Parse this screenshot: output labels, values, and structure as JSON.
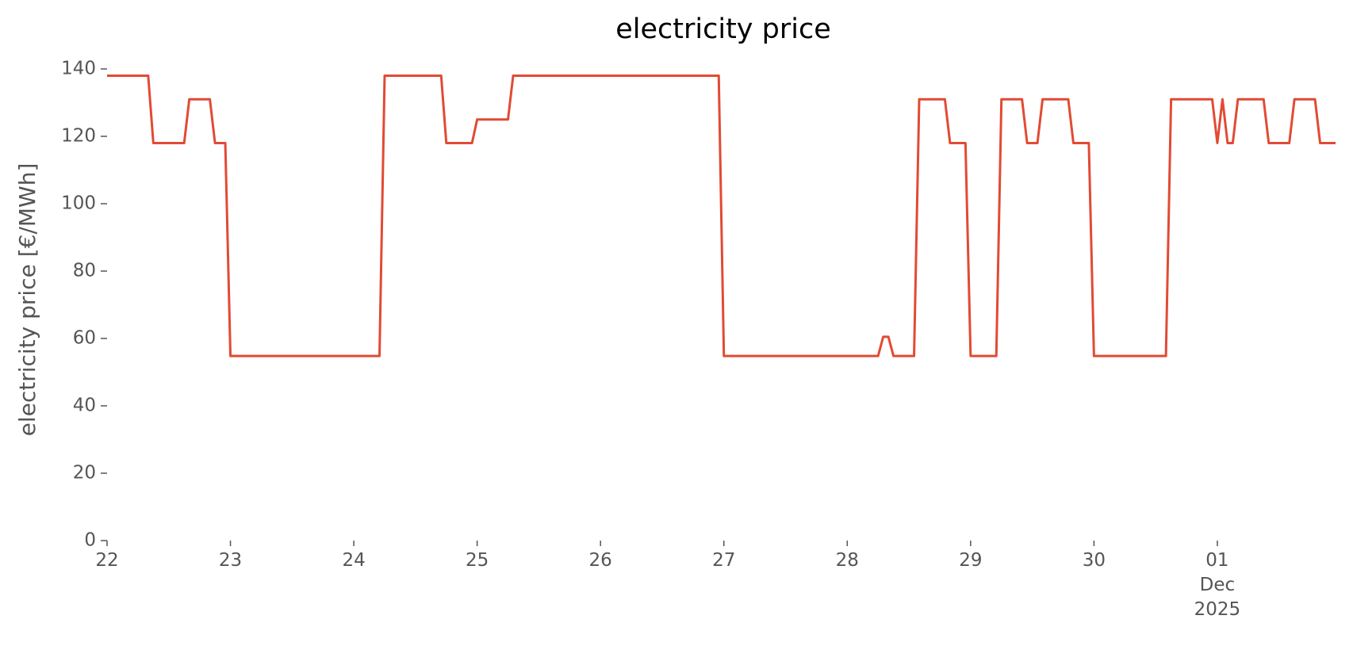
{
  "chart_data": {
    "type": "line",
    "title": "electricity price",
    "ylabel": "electricity price [€/MWh]",
    "x": [
      "2025-11-22T00:00",
      "2025-11-22T08:00",
      "2025-11-22T09:00",
      "2025-11-22T15:00",
      "2025-11-22T16:00",
      "2025-11-22T20:00",
      "2025-11-22T21:00",
      "2025-11-22T23:00",
      "2025-11-23T00:00",
      "2025-11-24T05:00",
      "2025-11-24T06:00",
      "2025-11-24T17:00",
      "2025-11-24T18:00",
      "2025-11-24T23:00",
      "2025-11-25T00:00",
      "2025-11-25T06:00",
      "2025-11-25T07:00",
      "2025-11-26T23:00",
      "2025-11-27T00:00",
      "2025-11-28T06:00",
      "2025-11-28T07:00",
      "2025-11-28T08:00",
      "2025-11-28T09:00",
      "2025-11-28T13:00",
      "2025-11-28T14:00",
      "2025-11-28T19:00",
      "2025-11-28T20:00",
      "2025-11-28T23:00",
      "2025-11-29T00:00",
      "2025-11-29T05:00",
      "2025-11-29T06:00",
      "2025-11-29T10:00",
      "2025-11-29T11:00",
      "2025-11-29T13:00",
      "2025-11-29T14:00",
      "2025-11-29T19:00",
      "2025-11-29T20:00",
      "2025-11-29T23:00",
      "2025-11-30T00:00",
      "2025-11-30T14:00",
      "2025-11-30T15:00",
      "2025-11-30T23:00",
      "2025-12-01T00:00",
      "2025-12-01T01:00",
      "2025-12-01T02:00",
      "2025-12-01T03:00",
      "2025-12-01T04:00",
      "2025-12-01T09:00",
      "2025-12-01T10:00",
      "2025-12-01T14:00",
      "2025-12-01T15:00",
      "2025-12-01T19:00",
      "2025-12-01T20:00",
      "2025-12-01T23:00"
    ],
    "series": [
      {
        "name": "electricity price",
        "color": "#e24a33",
        "values": [
          138,
          138,
          118,
          118,
          131,
          131,
          118,
          118,
          54.8,
          54.8,
          138,
          138,
          118,
          118,
          125,
          125,
          138,
          138,
          54.8,
          54.8,
          60.5,
          60.5,
          54.8,
          54.8,
          131,
          131,
          118,
          118,
          54.8,
          54.8,
          131,
          131,
          118,
          118,
          131,
          131,
          118,
          118,
          54.8,
          54.8,
          131,
          131,
          118,
          131,
          118,
          118,
          131,
          131,
          118,
          118,
          131,
          131,
          118,
          118
        ]
      }
    ],
    "xlim": [
      "2025-11-22T00:00",
      "2025-12-01T23:00"
    ],
    "xticks": [
      {
        "value": "2025-11-22T00:00",
        "label": "22"
      },
      {
        "value": "2025-11-23T00:00",
        "label": "23"
      },
      {
        "value": "2025-11-24T00:00",
        "label": "24"
      },
      {
        "value": "2025-11-25T00:00",
        "label": "25"
      },
      {
        "value": "2025-11-26T00:00",
        "label": "26"
      },
      {
        "value": "2025-11-27T00:00",
        "label": "27"
      },
      {
        "value": "2025-11-28T00:00",
        "label": "28"
      },
      {
        "value": "2025-11-29T00:00",
        "label": "29"
      },
      {
        "value": "2025-11-30T00:00",
        "label": "30"
      },
      {
        "value": "2025-12-01T00:00",
        "label": "01\nDec\n2025"
      }
    ],
    "ylim": [
      0,
      140
    ],
    "yticks": [
      0,
      20,
      40,
      60,
      80,
      100,
      120,
      140
    ],
    "grid": false
  }
}
